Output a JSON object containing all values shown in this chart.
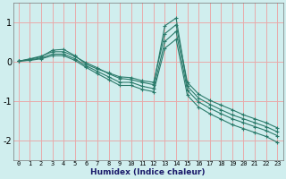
{
  "xlabel": "Humidex (Indice chaleur)",
  "background_color": "#d0eeee",
  "grid_color": "#e8aaaa",
  "line_color": "#2a7a6a",
  "x_values": [
    0,
    1,
    2,
    3,
    4,
    5,
    6,
    7,
    8,
    9,
    10,
    11,
    12,
    13,
    14,
    15,
    16,
    17,
    18,
    19,
    20,
    21,
    22,
    23
  ],
  "series": [
    [
      0.02,
      0.08,
      0.15,
      0.26,
      0.26,
      0.14,
      -0.02,
      -0.15,
      -0.3,
      -0.42,
      -0.45,
      -0.52,
      -0.58,
      0.92,
      1.12,
      -0.62,
      -0.92,
      -1.08,
      -1.22,
      -1.35,
      -1.45,
      -1.55,
      -1.65,
      -1.78
    ],
    [
      0.02,
      0.07,
      0.13,
      0.3,
      0.32,
      0.16,
      -0.06,
      -0.18,
      -0.28,
      -0.38,
      -0.4,
      -0.48,
      -0.52,
      0.72,
      0.95,
      -0.52,
      -0.82,
      -0.98,
      -1.1,
      -1.22,
      -1.35,
      -1.45,
      -1.55,
      -1.68
    ],
    [
      0.02,
      0.05,
      0.1,
      0.2,
      0.2,
      0.08,
      -0.1,
      -0.24,
      -0.38,
      -0.52,
      -0.52,
      -0.62,
      -0.68,
      0.52,
      0.78,
      -0.72,
      -1.02,
      -1.18,
      -1.32,
      -1.45,
      -1.55,
      -1.65,
      -1.75,
      -1.88
    ],
    [
      0.02,
      0.04,
      0.08,
      0.16,
      0.16,
      0.04,
      -0.14,
      -0.3,
      -0.45,
      -0.6,
      -0.6,
      -0.7,
      -0.76,
      0.35,
      0.58,
      -0.85,
      -1.15,
      -1.32,
      -1.46,
      -1.6,
      -1.7,
      -1.8,
      -1.9,
      -2.05
    ]
  ],
  "ylim": [
    -2.5,
    1.5
  ],
  "xlim": [
    -0.5,
    23.5
  ],
  "yticks": [
    -2,
    -1,
    0,
    1
  ],
  "xticks": [
    0,
    1,
    2,
    3,
    4,
    5,
    6,
    7,
    8,
    9,
    10,
    11,
    12,
    13,
    14,
    15,
    16,
    17,
    18,
    19,
    20,
    21,
    22,
    23
  ]
}
